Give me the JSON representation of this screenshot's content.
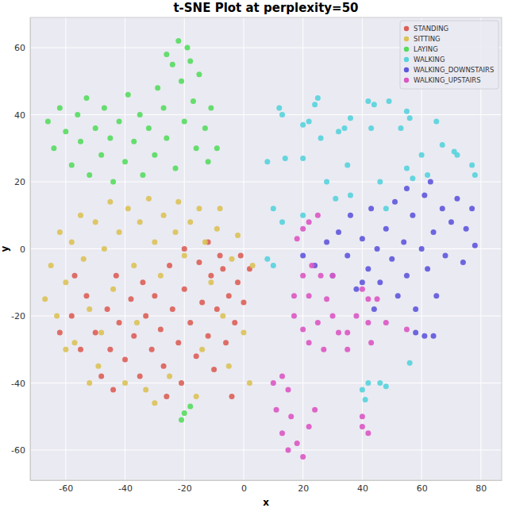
{
  "chart_data": {
    "type": "scatter",
    "title": "t-SNE Plot at perplexity=50",
    "x_label": "x",
    "y_label": "y",
    "xlim": [
      -72,
      87
    ],
    "ylim": [
      -69,
      69
    ],
    "xticks": [
      -60,
      -40,
      -20,
      0,
      20,
      40,
      60,
      80
    ],
    "yticks": [
      -60,
      -40,
      -20,
      0,
      20,
      40,
      60
    ],
    "grid": true,
    "legend": "upper right",
    "series": [
      {
        "name": "STANDING",
        "color": "#db5f57",
        "x": [
          -62,
          -58,
          -55,
          -53,
          -50,
          -48,
          -46,
          -45,
          -43,
          -42,
          -40,
          -38,
          -37,
          -35,
          -34,
          -33,
          -31,
          -30,
          -28,
          -27,
          -25,
          -24,
          -22,
          -21,
          -20,
          -18,
          -16,
          -15,
          -14,
          -12,
          -11,
          -10,
          -9,
          -7,
          -6,
          -5,
          -3,
          -2,
          0,
          2,
          -12,
          -8,
          -20,
          -44,
          -26,
          -4,
          -1,
          -57
        ],
        "values": [
          -25,
          -20,
          -30,
          -14,
          -25,
          -38,
          -18,
          -30,
          -8,
          -22,
          -33,
          -15,
          -26,
          -38,
          -10,
          -20,
          -30,
          -14,
          -24,
          -35,
          -5,
          -18,
          -28,
          -40,
          -12,
          -22,
          -32,
          -4,
          -16,
          -26,
          -8,
          -36,
          -18,
          -6,
          -28,
          -14,
          -22,
          -10,
          -16,
          -6,
          2,
          -2,
          0,
          -42,
          -44,
          -44,
          -2,
          -8
        ]
      },
      {
        "name": "SITTING",
        "color": "#dbc257",
        "x": [
          -67,
          -65,
          -63,
          -62,
          -60,
          -58,
          -57,
          -55,
          -54,
          -52,
          -50,
          -49,
          -47,
          -45,
          -44,
          -42,
          -40,
          -39,
          -37,
          -35,
          -33,
          -32,
          -30,
          -28,
          -27,
          -25,
          -23,
          -22,
          -20,
          -18,
          -16,
          -15,
          -13,
          -11,
          -9,
          -7,
          -5,
          -4,
          -2,
          0,
          3,
          -60,
          -48,
          -36,
          -8,
          -14,
          -52,
          -30,
          2
        ],
        "values": [
          -15,
          -5,
          -20,
          5,
          -10,
          2,
          -28,
          10,
          -3,
          -18,
          8,
          -35,
          0,
          14,
          -12,
          5,
          -40,
          12,
          -5,
          8,
          -42,
          15,
          2,
          -8,
          10,
          -38,
          5,
          14,
          -2,
          8,
          -44,
          12,
          2,
          -10,
          6,
          -20,
          -35,
          -3,
          4,
          -25,
          -5,
          -30,
          -25,
          -22,
          12,
          -30,
          -40,
          -46,
          -40
        ]
      },
      {
        "name": "LAYING",
        "color": "#57db5f",
        "x": [
          -66,
          -64,
          -62,
          -60,
          -58,
          -56,
          -55,
          -53,
          -52,
          -50,
          -48,
          -47,
          -45,
          -44,
          -42,
          -40,
          -39,
          -37,
          -35,
          -34,
          -32,
          -30,
          -29,
          -27,
          -26,
          -24,
          -23,
          -21,
          -20,
          -19,
          -17,
          -16,
          -15,
          -13,
          -12,
          -11,
          -9,
          -26,
          -22,
          -18,
          -20,
          -18,
          -21
        ],
        "values": [
          38,
          30,
          42,
          35,
          25,
          40,
          32,
          45,
          22,
          36,
          28,
          42,
          33,
          20,
          38,
          26,
          46,
          32,
          40,
          22,
          36,
          28,
          48,
          42,
          33,
          55,
          24,
          50,
          38,
          60,
          44,
          30,
          52,
          36,
          26,
          42,
          30,
          58,
          62,
          56,
          -49,
          -47,
          -51
        ]
      },
      {
        "name": "WALKING",
        "color": "#57d3db",
        "x": [
          13,
          12,
          20,
          22,
          24,
          25,
          32,
          34,
          36,
          42,
          44,
          43,
          49,
          53,
          55,
          56,
          60,
          65,
          67,
          71,
          72,
          77,
          78,
          8,
          14,
          20,
          26,
          28,
          35,
          31,
          36,
          10,
          20,
          13,
          8,
          10,
          46,
          48,
          55,
          62,
          57,
          40,
          42,
          46,
          48,
          56,
          41
        ],
        "values": [
          40,
          42,
          37,
          38,
          43,
          45,
          35,
          36,
          39,
          44,
          43,
          36,
          44,
          36,
          41,
          39,
          28,
          38,
          31,
          29,
          28,
          25,
          22,
          26,
          27,
          27,
          33,
          20,
          25,
          15,
          16,
          12,
          10,
          8,
          -3,
          -5,
          20,
          12,
          24,
          22,
          21,
          -42,
          -40,
          -40,
          -41,
          -34,
          -45
        ]
      },
      {
        "name": "WALKING_DOWNSTAIRS",
        "color": "#5f57db",
        "x": [
          20,
          24,
          28,
          30,
          32,
          35,
          36,
          38,
          40,
          42,
          43,
          45,
          46,
          48,
          50,
          51,
          52,
          54,
          55,
          57,
          58,
          60,
          61,
          62,
          64,
          65,
          67,
          68,
          70,
          72,
          74,
          75,
          77,
          78,
          63,
          58,
          61,
          64,
          55,
          40,
          44
        ],
        "values": [
          -2,
          -5,
          2,
          -8,
          5,
          -2,
          10,
          -12,
          3,
          -6,
          12,
          0,
          -10,
          6,
          -3,
          14,
          -14,
          2,
          -8,
          10,
          -18,
          0,
          16,
          -6,
          5,
          -14,
          12,
          -2,
          8,
          15,
          -4,
          6,
          12,
          1,
          20,
          -25,
          -26,
          -26,
          18,
          -10,
          -18
        ]
      },
      {
        "name": "WALKING_UPSTAIRS",
        "color": "#db57c2",
        "x": [
          20,
          22,
          18,
          25,
          20,
          23,
          26,
          22,
          28,
          17,
          20,
          25,
          30,
          22,
          27,
          32,
          40,
          42,
          45,
          38,
          35,
          42,
          10,
          13,
          15,
          11,
          16,
          13,
          18,
          20,
          15,
          22,
          24,
          40,
          42,
          40,
          48,
          30,
          35,
          43,
          55,
          17
        ],
        "values": [
          6,
          8,
          3,
          10,
          -8,
          -5,
          -8,
          -14,
          -15,
          -20,
          -24,
          -22,
          -20,
          -28,
          -30,
          -25,
          -12,
          -15,
          -15,
          -20,
          -25,
          -22,
          -40,
          -38,
          -42,
          -48,
          -50,
          -55,
          -58,
          -62,
          -60,
          -53,
          -48,
          -53,
          -55,
          -50,
          -22,
          -8,
          -30,
          -28,
          -24,
          -14
        ]
      }
    ]
  }
}
